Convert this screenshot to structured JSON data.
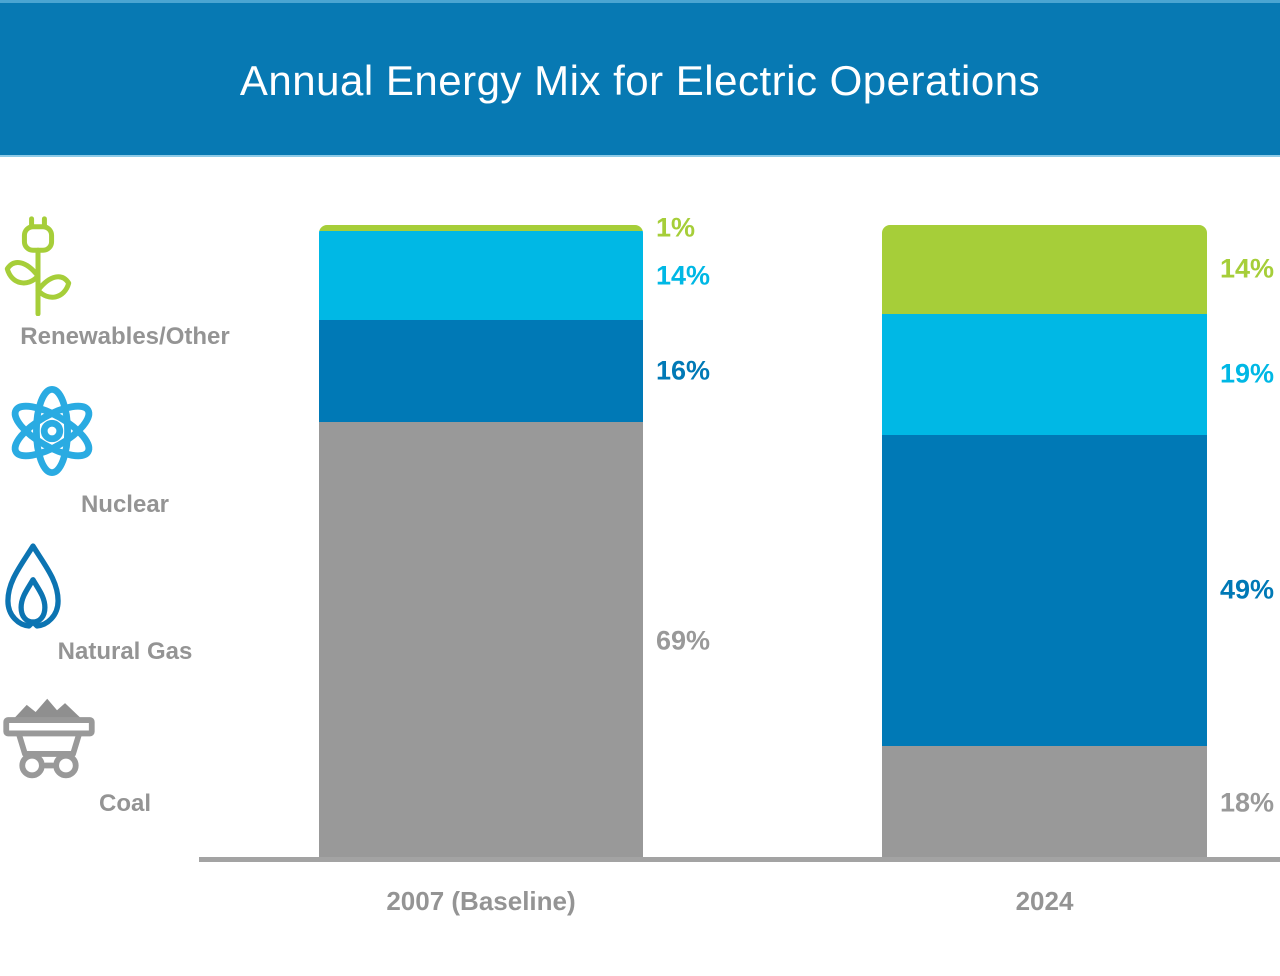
{
  "header": {
    "title": "Annual Energy Mix for Electric Operations",
    "background_color": "#0779b3",
    "text_color": "#ffffff"
  },
  "legend": {
    "position": "left",
    "items": [
      {
        "label": "Renewables/Other",
        "icon": "plug-plant-icon",
        "color": "#a6ce39"
      },
      {
        "label": "Nuclear",
        "icon": "atom-icon",
        "color": "#2aabe2"
      },
      {
        "label": "Natural Gas",
        "icon": "flame-icon",
        "color": "#0c74b2"
      },
      {
        "label": "Coal",
        "icon": "coal-cart-icon",
        "color": "#999999"
      }
    ],
    "label_color": "#949494"
  },
  "chart_data": {
    "type": "bar",
    "subtype": "100%-stacked-column",
    "title": "Annual Energy Mix for Electric Operations",
    "categories": [
      "2007 (Baseline)",
      "2024"
    ],
    "series": [
      {
        "name": "Renewables/Other",
        "color": "#a6ce39",
        "values": [
          1,
          14
        ]
      },
      {
        "name": "Nuclear",
        "color": "#00b8e5",
        "values": [
          14,
          19
        ]
      },
      {
        "name": "Natural Gas",
        "color": "#0079b6",
        "values": [
          16,
          49
        ]
      },
      {
        "name": "Coal",
        "color": "#999999",
        "values": [
          69,
          18
        ]
      }
    ],
    "stack_order": "top-to-bottom",
    "value_label_format": "{value}%",
    "value_labels": {
      "2007 (Baseline)": [
        "1%",
        "14%",
        "16%",
        "69%"
      ],
      "2024": [
        "14%",
        "19%",
        "49%",
        "18%"
      ]
    },
    "ylim": [
      0,
      100
    ],
    "grid": false,
    "axis_line_color": "#a3a3a3",
    "category_label_color": "#949494",
    "legend_position": "left"
  }
}
